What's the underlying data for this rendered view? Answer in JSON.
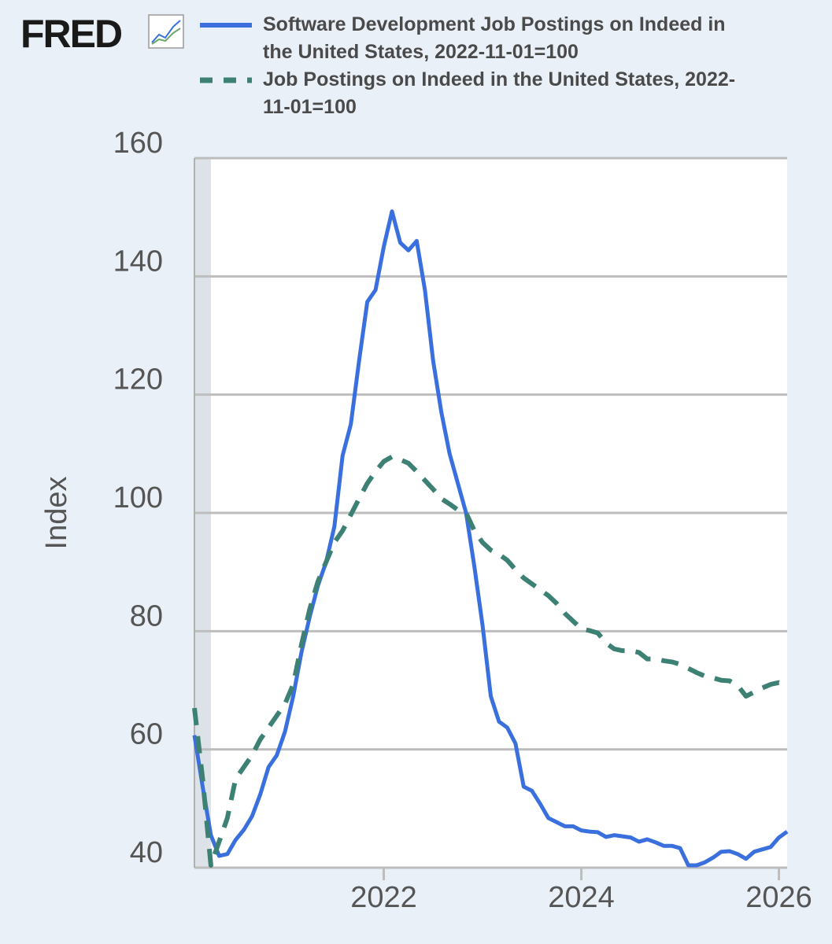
{
  "header": {
    "logo": "FRED"
  },
  "chart_data": {
    "type": "line",
    "x": [
      "2020-02",
      "2020-03",
      "2020-04",
      "2020-05",
      "2020-06",
      "2020-07",
      "2020-08",
      "2020-09",
      "2020-10",
      "2020-11",
      "2020-12",
      "2021-01",
      "2021-02",
      "2021-03",
      "2021-04",
      "2021-05",
      "2021-06",
      "2021-07",
      "2021-08",
      "2021-09",
      "2021-10",
      "2021-11",
      "2021-12",
      "2022-01",
      "2022-02",
      "2022-03",
      "2022-04",
      "2022-05",
      "2022-06",
      "2022-07",
      "2022-08",
      "2022-09",
      "2022-10",
      "2022-11",
      "2022-12",
      "2023-01",
      "2023-02",
      "2023-03",
      "2023-04",
      "2023-05",
      "2023-06",
      "2023-07",
      "2023-08",
      "2023-09",
      "2023-10",
      "2023-11",
      "2023-12",
      "2024-01",
      "2024-02",
      "2024-03",
      "2024-04",
      "2024-05",
      "2024-06",
      "2024-07",
      "2024-08",
      "2024-09",
      "2024-10",
      "2024-11",
      "2024-12",
      "2025-01",
      "2025-02",
      "2025-03",
      "2025-04",
      "2025-05",
      "2025-06",
      "2025-07",
      "2025-08",
      "2025-09",
      "2025-10",
      "2025-11",
      "2025-12",
      "2026-01",
      "2026-02"
    ],
    "series": [
      {
        "name": "Software Development Job Postings on Indeed in the United States, 2022-11-01=100",
        "color": "#3a6fde",
        "style": "solid",
        "values": [
          62.4,
          53.7,
          45.5,
          42,
          42.3,
          44.7,
          46.4,
          48.7,
          52.4,
          57,
          59,
          63,
          69,
          76.4,
          82.4,
          87.7,
          91.7,
          97.7,
          109.7,
          115,
          125.7,
          135.7,
          137.7,
          145,
          151,
          145.7,
          144.4,
          146,
          137.7,
          125.7,
          117,
          110,
          105,
          100,
          91,
          81,
          69,
          64.7,
          63.7,
          61,
          53.7,
          53,
          50.8,
          48.4,
          47.7,
          47,
          47,
          46.3,
          46.1,
          46,
          45.2,
          45.5,
          45.3,
          45.1,
          44.4,
          44.8,
          44.3,
          43.7,
          43.7,
          43.3,
          40.4,
          40.4,
          40.9,
          41.7,
          42.7,
          42.8,
          42.3,
          41.5,
          42.7,
          43.1,
          43.5,
          45.1,
          46.1
        ]
      },
      {
        "name": "Job Postings on Indeed in the United States, 2022-11-01=100",
        "color": "#3d8074",
        "style": "dashed",
        "values": [
          67,
          55,
          40.4,
          44.4,
          48.4,
          55,
          57,
          59,
          61.7,
          63.7,
          65.7,
          67.7,
          71,
          77.7,
          83.7,
          88.4,
          91.7,
          95,
          97,
          99.7,
          102.4,
          105,
          107,
          108.7,
          109.5,
          109,
          108.4,
          107,
          105.5,
          104,
          102.4,
          101.5,
          100.5,
          100,
          97,
          95,
          93.7,
          93,
          92,
          90.4,
          89,
          88,
          87,
          86,
          84.7,
          83,
          81.7,
          80.4,
          80.1,
          79.7,
          78,
          77,
          76.7,
          76.7,
          76.4,
          75.3,
          75.3,
          75,
          74.8,
          74.4,
          73.7,
          73,
          72.4,
          72.1,
          71.7,
          71.6,
          70.8,
          69,
          69.7,
          70.4,
          71,
          71.3,
          70.8
        ]
      }
    ],
    "ylabel": "Index",
    "xlim": [
      "2020-02",
      "2026-02"
    ],
    "xticks": [
      2022,
      2024,
      2026
    ],
    "ylim": [
      40,
      160
    ],
    "yticks": [
      40,
      60,
      80,
      100,
      120,
      140,
      160
    ],
    "grid": true,
    "recessions": [
      [
        "2020-02",
        "2020-04"
      ]
    ]
  }
}
